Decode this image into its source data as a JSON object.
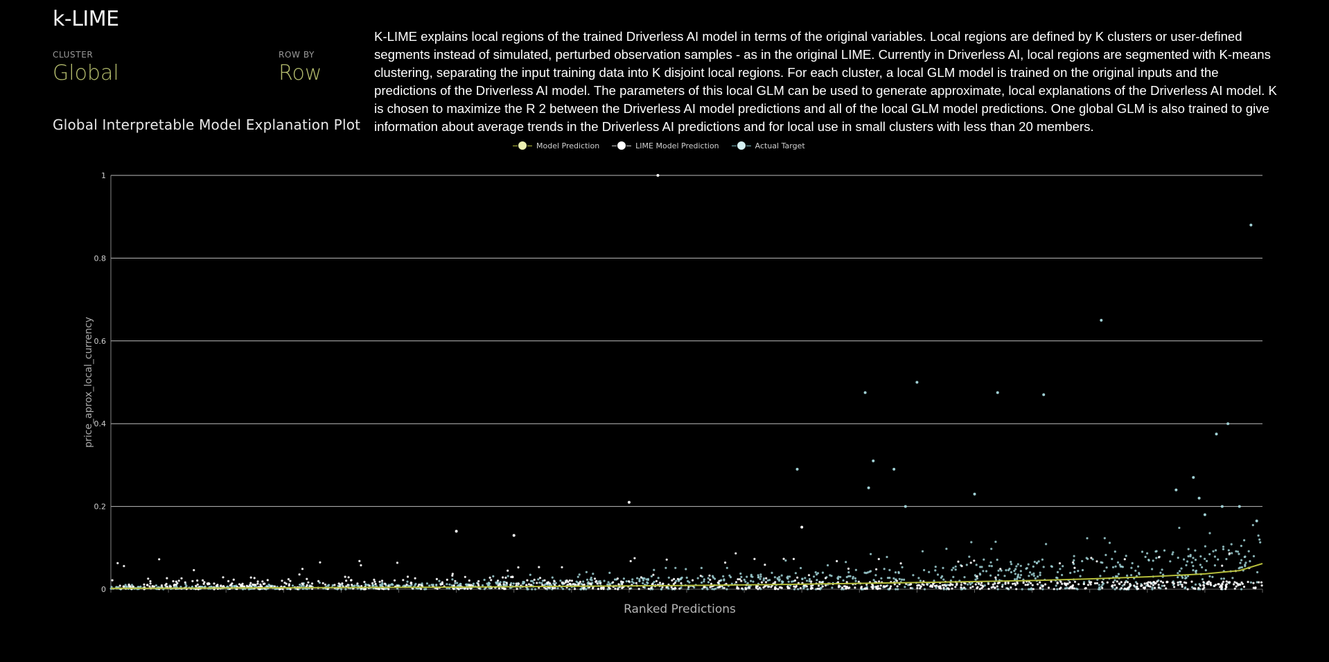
{
  "header": {
    "title": "k-LIME",
    "cluster_label": "CLUSTER",
    "cluster_value": "Global",
    "rowby_label": "ROW BY",
    "rowby_value": "Row",
    "plot_title": "Global Interpretable Model Explanation Plot"
  },
  "description": "K-LIME explains local regions of the trained Driverless AI model in terms of the original variables. Local regions are defined by K clusters or user-defined segments instead of simulated, perturbed observation samples - as in the original LIME. Currently in Driverless AI, local regions are segmented with K-means clustering, separating the input training data into K disjoint local regions. For each cluster, a local GLM model is trained on the original inputs and the predictions of the Driverless AI model. The parameters of this local GLM can be used to generate approximate, local explanations of the Driverless AI model. K is chosen to maximize the R 2 between the Driverless AI model predictions and all of the local GLM model predictions. One global GLM is also trained to give information about average trends in the Driverless AI predictions and for local use in small clusters with less than 20 members.",
  "legend": [
    {
      "name": "Model Prediction",
      "color": "#ecf0b0",
      "line_color": "#b5bd3a"
    },
    {
      "name": "LIME Model Prediction",
      "color": "#ffffff",
      "line_color": "#cccccc"
    },
    {
      "name": "Actual Target",
      "color": "#d4f0f2",
      "line_color": "#7ab7bd"
    }
  ],
  "chart_data": {
    "type": "scatter",
    "title": "",
    "xlabel": "Ranked Predictions",
    "ylabel": "price_aprox_local_currency",
    "ylim": [
      0,
      1
    ],
    "y_ticks": [
      "0",
      "0.2",
      "0.4",
      "0.6",
      "0.8",
      "1"
    ],
    "grid": true,
    "legend_position": "top-center",
    "colors": {
      "model_prediction": "#b5bd3a",
      "lime_prediction": "#ffffff",
      "actual_target": "#9fd0d4"
    },
    "series": [
      {
        "name": "Model Prediction",
        "type": "line",
        "x": [
          0,
          0.1,
          0.2,
          0.3,
          0.4,
          0.5,
          0.6,
          0.7,
          0.8,
          0.85,
          0.9,
          0.95,
          0.98,
          1.0
        ],
        "y": [
          0.002,
          0.003,
          0.004,
          0.005,
          0.007,
          0.009,
          0.012,
          0.016,
          0.021,
          0.025,
          0.03,
          0.037,
          0.045,
          0.062
        ]
      },
      {
        "name": "LIME Model Prediction",
        "type": "scatter_outliers",
        "points": [
          [
            0.475,
            1.0
          ],
          [
            0.45,
            0.21
          ],
          [
            0.6,
            0.15
          ],
          [
            0.3,
            0.14
          ],
          [
            0.35,
            0.13
          ]
        ]
      },
      {
        "name": "Actual Target",
        "type": "scatter_outliers",
        "points": [
          [
            0.99,
            0.88
          ],
          [
            0.86,
            0.65
          ],
          [
            0.7,
            0.5
          ],
          [
            0.655,
            0.475
          ],
          [
            0.77,
            0.475
          ],
          [
            0.81,
            0.47
          ],
          [
            0.97,
            0.4
          ],
          [
            0.96,
            0.375
          ],
          [
            0.596,
            0.29
          ],
          [
            0.68,
            0.29
          ],
          [
            0.662,
            0.31
          ],
          [
            0.658,
            0.245
          ],
          [
            0.94,
            0.27
          ],
          [
            0.925,
            0.24
          ],
          [
            0.75,
            0.23
          ],
          [
            0.945,
            0.22
          ],
          [
            0.69,
            0.2
          ],
          [
            0.965,
            0.2
          ],
          [
            0.98,
            0.2
          ],
          [
            0.95,
            0.18
          ],
          [
            0.995,
            0.165
          ]
        ]
      }
    ]
  }
}
